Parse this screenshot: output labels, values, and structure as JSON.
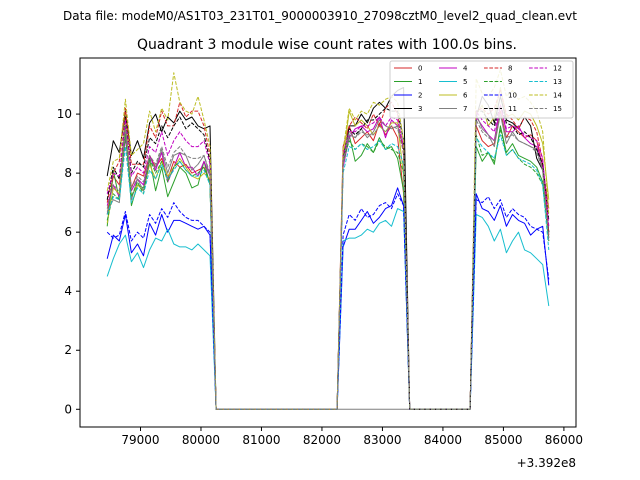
{
  "chart_data": {
    "type": "line",
    "suptitle": "Data file: modeM0/AS1T03_231T01_9000003910_27098cztM0_level2_quad_clean.evt",
    "title": "Quadrant 3 module wise count rates with 100.0s bins.",
    "xlabel": "",
    "ylabel": "",
    "x_offset_label": "+3.392e8",
    "xlim": [
      78000,
      86200
    ],
    "ylim": [
      -0.6,
      11.9
    ],
    "xticks": [
      79000,
      80000,
      81000,
      82000,
      83000,
      84000,
      85000,
      86000
    ],
    "xtick_labels": [
      "79000",
      "80000",
      "81000",
      "82000",
      "83000",
      "84000",
      "85000",
      "86000"
    ],
    "yticks": [
      0,
      2,
      4,
      6,
      8,
      10
    ],
    "ytick_labels": [
      "0",
      "2",
      "4",
      "6",
      "8",
      "10"
    ],
    "legend_position": "top-right",
    "segments": [
      {
        "x_start": 78450,
        "bins": 18
      },
      {
        "x_start": 82350,
        "bins": 11
      },
      {
        "x_start": 84550,
        "bins": 13
      }
    ],
    "zero_x": [
      80250,
      80350,
      80450,
      80550,
      80650,
      80750,
      80850,
      80950,
      81050,
      81150,
      81250,
      81350,
      81450,
      81550,
      81650,
      81750,
      81850,
      81950,
      82050,
      82150,
      82250,
      83450,
      83550,
      83650,
      83750,
      83850,
      83950,
      84050,
      84150,
      84250,
      84350,
      84450
    ],
    "series": [
      {
        "name": "0",
        "color": "#d62728",
        "dash": false,
        "values": [
          6.6,
          7.9,
          7.6,
          9.4,
          7.5,
          8.0,
          7.9,
          8.6,
          8.2,
          8.5,
          7.8,
          8.4,
          8.2,
          8.3,
          8.0,
          8.1,
          8.2,
          7.7,
          8.9,
          9.6,
          9.0,
          9.2,
          9.4,
          9.1,
          9.7,
          9.3,
          9.6,
          9.2,
          7.3,
          9.6,
          9.1,
          8.9,
          9.0,
          10.1,
          9.2,
          9.6,
          9.4,
          9.2,
          9.3,
          9.1,
          8.2,
          6.8
        ]
      },
      {
        "name": "1",
        "color": "#2ca02c",
        "dash": false,
        "values": [
          6.2,
          8.1,
          7.1,
          9.6,
          6.9,
          7.6,
          7.5,
          8.5,
          7.4,
          8.2,
          7.2,
          7.7,
          8.2,
          8.0,
          7.5,
          7.6,
          8.4,
          7.6,
          8.6,
          9.3,
          8.4,
          8.6,
          9.0,
          8.7,
          9.2,
          8.8,
          8.9,
          8.5,
          7.4,
          8.9,
          8.4,
          8.7,
          8.3,
          9.6,
          8.7,
          9.0,
          8.6,
          8.5,
          8.4,
          8.2,
          7.7,
          6.0
        ]
      },
      {
        "name": "2",
        "color": "#0000ff",
        "dash": false,
        "values": [
          5.1,
          5.9,
          5.7,
          6.6,
          5.3,
          5.6,
          5.2,
          6.3,
          5.9,
          6.6,
          6.0,
          6.4,
          6.4,
          6.3,
          6.2,
          6.1,
          6.2,
          5.9,
          5.5,
          6.1,
          6.1,
          6.4,
          6.7,
          6.3,
          6.5,
          6.8,
          6.9,
          7.5,
          6.9,
          7.3,
          6.8,
          6.7,
          6.4,
          6.9,
          6.2,
          6.6,
          6.4,
          6.3,
          5.9,
          6.1,
          6.2,
          4.2
        ]
      },
      {
        "name": "3",
        "color": "#000000",
        "dash": false,
        "values": [
          7.9,
          9.1,
          8.7,
          10.1,
          8.6,
          9.1,
          8.5,
          9.7,
          10.0,
          9.4,
          9.9,
          9.7,
          10.1,
          9.8,
          9.9,
          9.6,
          9.5,
          9.6,
          8.3,
          9.6,
          9.6,
          10.0,
          9.7,
          10.2,
          10.4,
          10.2,
          10.6,
          10.8,
          10.9,
          9.9,
          10.6,
          10.3,
          9.7,
          10.6,
          9.8,
          9.7,
          9.5,
          9.9,
          9.6,
          8.5,
          8.1,
          6.0
        ]
      },
      {
        "name": "4",
        "color": "#c000c0",
        "dash": false,
        "values": [
          6.9,
          7.6,
          7.2,
          9.2,
          7.4,
          7.8,
          7.6,
          8.6,
          8.1,
          8.7,
          7.7,
          8.2,
          8.7,
          8.2,
          8.2,
          7.9,
          8.4,
          7.9,
          8.2,
          9.2,
          9.5,
          9.6,
          9.4,
          9.5,
          9.9,
          9.2,
          9.8,
          9.6,
          8.8,
          9.9,
          9.6,
          9.3,
          9.1,
          10.3,
          9.4,
          9.4,
          9.6,
          9.2,
          9.0,
          8.9,
          8.3,
          5.8
        ]
      },
      {
        "name": "5",
        "color": "#17becf",
        "dash": false,
        "values": [
          4.5,
          5.1,
          5.6,
          5.9,
          5.0,
          5.3,
          4.8,
          5.4,
          5.8,
          5.7,
          6.1,
          5.6,
          5.5,
          5.5,
          5.4,
          5.6,
          5.4,
          5.2,
          5.7,
          5.8,
          5.8,
          5.9,
          6.1,
          6.0,
          6.3,
          6.4,
          6.2,
          6.8,
          6.7,
          6.6,
          6.5,
          6.2,
          5.7,
          6.1,
          5.3,
          5.7,
          6.0,
          5.4,
          5.3,
          5.1,
          4.9,
          3.5
        ]
      },
      {
        "name": "6",
        "color": "#bcbd22",
        "dash": false,
        "values": [
          6.3,
          7.5,
          7.3,
          10.0,
          7.2,
          7.6,
          7.4,
          8.3,
          7.8,
          8.4,
          7.9,
          8.2,
          8.5,
          8.2,
          7.9,
          7.8,
          8.0,
          7.8,
          8.5,
          10.1,
          9.6,
          9.8,
          9.6,
          9.3,
          9.6,
          9.4,
          9.7,
          9.7,
          7.9,
          10.0,
          10.3,
          9.6,
          9.9,
          10.9,
          9.9,
          10.0,
          9.8,
          10.1,
          10.0,
          9.6,
          9.0,
          7.1
        ]
      },
      {
        "name": "7",
        "color": "#7f7f7f",
        "dash": false,
        "values": [
          6.7,
          7.1,
          7.0,
          9.4,
          7.1,
          7.8,
          7.4,
          8.4,
          8.2,
          8.8,
          8.0,
          8.6,
          8.7,
          8.6,
          8.1,
          8.3,
          8.6,
          7.9,
          8.3,
          9.3,
          9.2,
          9.5,
          9.2,
          9.4,
          9.8,
          9.6,
          9.5,
          9.6,
          8.9,
          10.0,
          9.5,
          9.3,
          8.9,
          10.0,
          9.0,
          9.4,
          9.1,
          9.0,
          8.9,
          8.8,
          8.1,
          5.7
        ]
      },
      {
        "name": "8",
        "color": "#d62728",
        "dash": true,
        "values": [
          7.0,
          8.0,
          8.4,
          10.2,
          8.3,
          8.3,
          8.3,
          9.6,
          9.2,
          10.1,
          9.6,
          9.6,
          10.4,
          9.9,
          10.1,
          10.1,
          9.6,
          8.6,
          8.4,
          9.6,
          9.9,
          9.7,
          9.5,
          10.0,
          9.6,
          10.2,
          10.4,
          10.0,
          8.6,
          10.1,
          10.2,
          10.0,
          10.2,
          10.8,
          10.0,
          9.8,
          9.5,
          9.9,
          9.8,
          9.4,
          8.4,
          5.9
        ]
      },
      {
        "name": "9",
        "color": "#2ca02c",
        "dash": true,
        "values": [
          6.4,
          7.3,
          7.1,
          9.3,
          7.2,
          7.7,
          7.3,
          8.5,
          8.0,
          8.4,
          7.7,
          8.2,
          8.4,
          8.1,
          7.9,
          8.0,
          8.2,
          7.6,
          8.4,
          9.1,
          8.8,
          9.0,
          8.9,
          8.7,
          9.1,
          8.9,
          8.8,
          8.7,
          8.0,
          9.3,
          8.6,
          8.7,
          8.4,
          9.5,
          8.6,
          8.8,
          8.5,
          8.3,
          8.2,
          8.0,
          7.6,
          5.7
        ]
      },
      {
        "name": "10",
        "color": "#0000ff",
        "dash": true,
        "values": [
          6.0,
          5.8,
          5.9,
          6.7,
          5.7,
          6.0,
          5.8,
          6.6,
          6.3,
          6.8,
          6.5,
          7.0,
          6.7,
          6.5,
          6.4,
          6.4,
          6.2,
          6.0,
          5.9,
          6.6,
          6.4,
          6.8,
          6.5,
          6.6,
          6.9,
          7.0,
          6.8,
          7.3,
          6.9,
          7.1,
          7.0,
          7.2,
          6.8,
          7.1,
          6.5,
          6.8,
          6.6,
          6.5,
          6.2,
          6.1,
          6.0,
          4.4
        ]
      },
      {
        "name": "11",
        "color": "#000000",
        "dash": true,
        "values": [
          7.1,
          8.2,
          7.8,
          9.9,
          8.0,
          8.4,
          8.2,
          9.2,
          9.0,
          9.6,
          9.2,
          9.6,
          9.9,
          9.5,
          9.7,
          9.5,
          9.3,
          8.4,
          8.5,
          9.5,
          9.3,
          9.5,
          9.8,
          9.8,
          10.0,
          10.2,
          10.1,
          10.1,
          9.1,
          10.1,
          10.1,
          9.8,
          9.6,
          10.3,
          9.7,
          9.6,
          9.3,
          9.4,
          9.2,
          8.8,
          8.3,
          6.4
        ]
      },
      {
        "name": "12",
        "color": "#c000c0",
        "dash": true,
        "values": [
          7.3,
          8.0,
          7.9,
          9.8,
          7.9,
          8.2,
          8.0,
          8.9,
          8.7,
          9.4,
          8.6,
          9.1,
          9.4,
          9.1,
          8.9,
          8.9,
          9.1,
          8.3,
          8.6,
          9.4,
          9.4,
          9.6,
          9.6,
          9.7,
          9.9,
          9.6,
          9.9,
          9.8,
          8.9,
          10.1,
          9.8,
          9.6,
          9.4,
          10.3,
          9.5,
          9.6,
          9.5,
          9.3,
          9.2,
          9.1,
          8.5,
          6.2
        ]
      },
      {
        "name": "13",
        "color": "#17becf",
        "dash": true,
        "values": [
          6.6,
          7.2,
          7.1,
          8.9,
          7.0,
          7.5,
          7.3,
          8.1,
          7.8,
          8.3,
          7.8,
          8.1,
          8.4,
          8.1,
          7.9,
          7.9,
          8.1,
          7.6,
          8.0,
          8.9,
          8.8,
          9.0,
          8.8,
          8.9,
          9.1,
          8.8,
          9.0,
          8.9,
          8.3,
          9.2,
          8.9,
          8.7,
          8.5,
          9.3,
          8.6,
          8.8,
          8.5,
          8.4,
          8.3,
          8.1,
          7.6,
          5.4
        ]
      },
      {
        "name": "14",
        "color": "#bcbd22",
        "dash": true,
        "values": [
          7.4,
          8.4,
          8.5,
          10.5,
          8.6,
          8.8,
          9.0,
          10.1,
          9.4,
          10.2,
          9.8,
          11.4,
          10.4,
          10.1,
          10.0,
          10.6,
          9.8,
          8.9,
          8.8,
          10.2,
          9.8,
          10.1,
          10.0,
          10.4,
          10.3,
          10.5,
          10.6,
          10.4,
          9.1,
          11.2,
          10.7,
          10.6,
          10.9,
          11.5,
          10.6,
          10.8,
          10.5,
          10.6,
          10.4,
          10.1,
          9.4,
          6.6
        ]
      },
      {
        "name": "15",
        "color": "#7f7f7f",
        "dash": true,
        "values": [
          6.8,
          7.6,
          7.4,
          9.5,
          7.5,
          7.9,
          7.7,
          8.6,
          8.3,
          8.9,
          8.2,
          8.7,
          8.9,
          8.6,
          8.5,
          8.5,
          8.6,
          8.0,
          8.4,
          9.4,
          9.2,
          9.4,
          9.3,
          9.3,
          9.6,
          9.4,
          9.6,
          9.5,
          8.7,
          9.8,
          9.4,
          9.2,
          9.1,
          10.0,
          9.2,
          9.3,
          9.1,
          9.0,
          8.9,
          8.7,
          8.1,
          5.8
        ]
      }
    ]
  }
}
